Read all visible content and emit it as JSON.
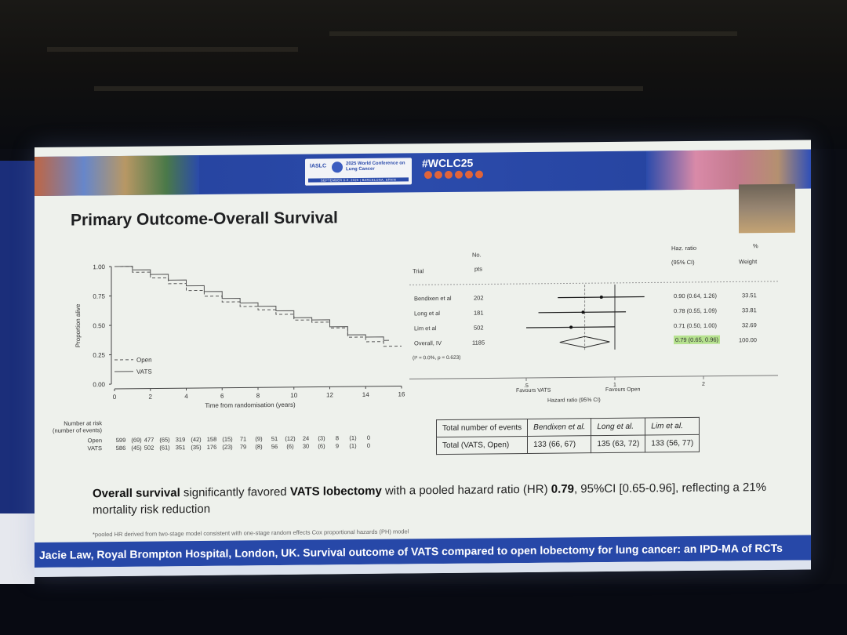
{
  "banner": {
    "org": "IASLC",
    "conference": "2025 World Conference on Lung Cancer",
    "dates": "SEPTEMBER 6-9, 2025 | BARCELONA, SPAIN",
    "hashtag": "#WCLC25"
  },
  "slide": {
    "title": "Primary Outcome-Overall Survival",
    "summary_pre": "Overall survival",
    "summary_mid": " significantly favored ",
    "summary_bold": "VATS lobectomy",
    "summary_mid2": " with a pooled hazard ratio (HR) ",
    "summary_hr": "0.79",
    "summary_post": ", 95%CI [0.65-0.96], reflecting a 21% mortality risk reduction",
    "footnote": "*pooled HR derived from two-stage model consistent with one-stage random effects Cox proportional hazards (PH) model",
    "footer": "Jacie Law, Royal Brompton Hospital, London, UK. Survival outcome of VATS compared to open lobectomy for lung cancer: an IPD-MA of RCTs"
  },
  "km_plot": {
    "ylabel": "Proportion alive",
    "xlabel": "Time from randomisation (years)",
    "yticks": [
      "1.00",
      "0.75",
      "0.50",
      "0.25",
      "0.00"
    ],
    "xticks": [
      "0",
      "2",
      "4",
      "6",
      "8",
      "10",
      "12",
      "14",
      "16"
    ],
    "legend": [
      "Open",
      "VATS"
    ],
    "risk_label": "Number at risk (number of events)",
    "risk_rows": [
      {
        "name": "Open",
        "values": [
          "599",
          "(69)",
          "477",
          "(65)",
          "319",
          "(42)",
          "158",
          "(15)",
          "71",
          "(9)",
          "51",
          "(12)",
          "24",
          "(3)",
          "8",
          "(1)",
          "0"
        ]
      },
      {
        "name": "VATS",
        "values": [
          "586",
          "(45)",
          "502",
          "(61)",
          "351",
          "(35)",
          "176",
          "(23)",
          "79",
          "(8)",
          "56",
          "(6)",
          "30",
          "(6)",
          "9",
          "(1)",
          "0"
        ]
      }
    ]
  },
  "forest": {
    "col_trial": "Trial",
    "col_no": "No.",
    "col_pts": "pts",
    "col_hr": "Haz. ratio",
    "col_ci": "(95% CI)",
    "col_pct": "%",
    "col_weight": "Weight",
    "rows": [
      {
        "trial": "Bendixen et al",
        "n": "202",
        "hr": "0.90 (0.64, 1.26)",
        "weight": "33.51"
      },
      {
        "trial": "Long et al",
        "n": "181",
        "hr": "0.78 (0.55, 1.09)",
        "weight": "33.81"
      },
      {
        "trial": "Lim et al",
        "n": "502",
        "hr": "0.71 (0.50, 1.00)",
        "weight": "32.69"
      }
    ],
    "overall": {
      "trial": "Overall, IV",
      "n": "1185",
      "hr": "0.79 (0.65, 0.96)",
      "weight": "100.00"
    },
    "heterogeneity": "(I² = 0.0%, p = 0.623)",
    "xticks": [
      ".5",
      "1",
      "2"
    ],
    "favours_left": "Favours VATS",
    "favours_right": "Favours Open",
    "xlabel": "Hazard ratio (95% CI)"
  },
  "events_table": {
    "headers": [
      "Total number of events",
      "Bendixen et al.",
      "Long et al.",
      "Lim et al."
    ],
    "row": [
      "Total (VATS, Open)",
      "133 (66, 67)",
      "135 (63, 72)",
      "133 (56, 77)"
    ]
  }
}
